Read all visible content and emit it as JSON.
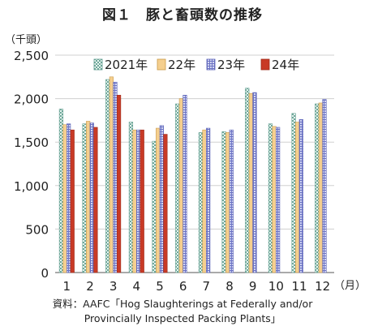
{
  "title": "図１　豚と畜頭数の推移",
  "chart_data": {
    "type": "bar",
    "title": "図１　豚と畜頭数の推移",
    "ylabel": "（千頭）",
    "xlabel": "（月）",
    "ylim": [
      0,
      2500
    ],
    "yticks": [
      0,
      500,
      1000,
      1500,
      2000,
      2500
    ],
    "ytick_labels": [
      "0",
      "500",
      "1,000",
      "1,500",
      "2,000",
      "2,500"
    ],
    "grid": true,
    "legend_position": "top-center",
    "categories": [
      "1",
      "2",
      "3",
      "4",
      "5",
      "6",
      "7",
      "8",
      "9",
      "10",
      "11",
      "12"
    ],
    "series": [
      {
        "name": "2021年",
        "values": [
          1880,
          1710,
          2220,
          1730,
          1510,
          1940,
          1610,
          1620,
          2120,
          1710,
          1830,
          1940
        ],
        "color": "#cfe6e0",
        "pattern": "checker"
      },
      {
        "name": "22年",
        "values": [
          1700,
          1740,
          2250,
          1640,
          1660,
          2000,
          1640,
          1610,
          2060,
          1680,
          1730,
          1950
        ],
        "color": "#f5cf8e",
        "pattern": "solid"
      },
      {
        "name": "23年",
        "values": [
          1710,
          1720,
          2190,
          1640,
          1690,
          2040,
          1660,
          1640,
          2070,
          1670,
          1760,
          1990
        ],
        "color": "#aab0e2",
        "pattern": "grid"
      },
      {
        "name": "24年",
        "values": [
          1640,
          1670,
          2040,
          1640,
          1590,
          null,
          null,
          null,
          null,
          null,
          null,
          null
        ],
        "color": "#c83a26",
        "pattern": "solid"
      }
    ]
  },
  "source": {
    "line1": "資料：AAFC「Hog Slaughterings at Federally and/or",
    "line2": "Provincially Inspected Packing Plants」"
  }
}
